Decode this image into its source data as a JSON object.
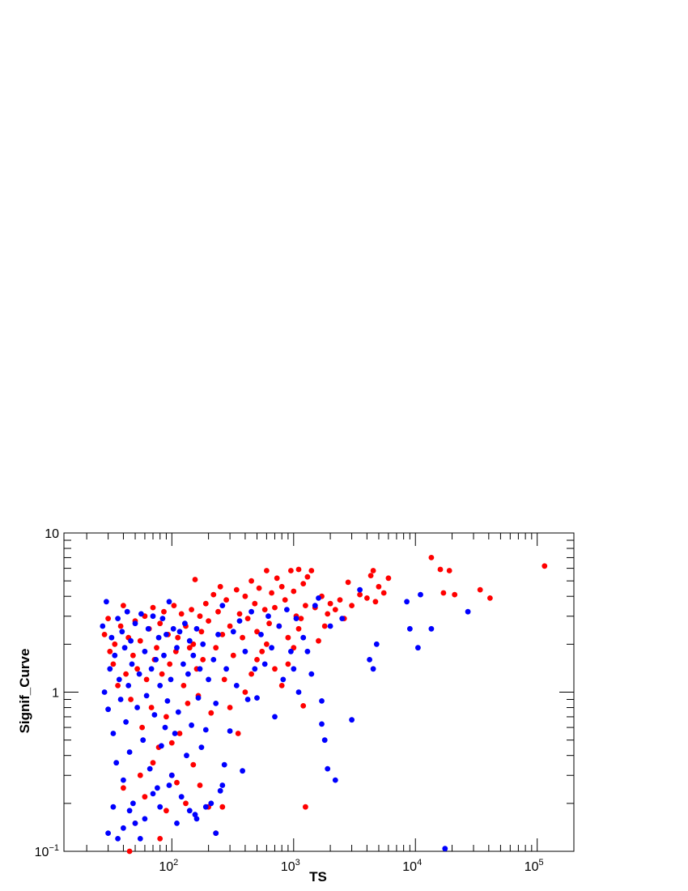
{
  "chart_data": {
    "type": "scatter",
    "title": "",
    "xlabel": "TS",
    "ylabel": "Signif_Curve",
    "xscale": "log",
    "yscale": "log",
    "xlim": [
      13,
      200000
    ],
    "ylim": [
      0.1,
      10
    ],
    "grid": false,
    "x_tick_labels": [
      {
        "value": 100,
        "base": "10",
        "exp": "2"
      },
      {
        "value": 1000,
        "base": "10",
        "exp": "3"
      },
      {
        "value": 10000,
        "base": "10",
        "exp": "4"
      },
      {
        "value": 100000,
        "base": "10",
        "exp": "5"
      }
    ],
    "y_tick_labels": [
      {
        "value": 0.1,
        "base": "10",
        "exp": "−1"
      },
      {
        "value": 1,
        "base": "1",
        "exp": ""
      },
      {
        "value": 10,
        "base": "10",
        "exp": ""
      }
    ],
    "series": [
      {
        "color": "#ff0000",
        "points": [
          [
            28,
            2.3
          ],
          [
            30,
            2.9
          ],
          [
            31,
            1.8
          ],
          [
            33,
            1.5
          ],
          [
            34,
            2.0
          ],
          [
            36,
            1.1
          ],
          [
            38,
            2.6
          ],
          [
            40,
            3.5
          ],
          [
            42,
            1.3
          ],
          [
            44,
            2.2
          ],
          [
            46,
            0.9
          ],
          [
            48,
            1.7
          ],
          [
            50,
            2.8
          ],
          [
            52,
            1.4
          ],
          [
            55,
            2.1
          ],
          [
            57,
            0.6
          ],
          [
            60,
            3.0
          ],
          [
            62,
            1.2
          ],
          [
            65,
            2.5
          ],
          [
            68,
            0.8
          ],
          [
            70,
            3.4
          ],
          [
            72,
            1.6
          ],
          [
            75,
            1.9
          ],
          [
            78,
            0.45
          ],
          [
            80,
            2.7
          ],
          [
            83,
            1.3
          ],
          [
            86,
            3.2
          ],
          [
            90,
            0.7
          ],
          [
            93,
            2.3
          ],
          [
            96,
            1.5
          ],
          [
            100,
            0.48
          ],
          [
            104,
            3.5
          ],
          [
            108,
            1.8
          ],
          [
            112,
            2.2
          ],
          [
            116,
            0.55
          ],
          [
            120,
            3.1
          ],
          [
            125,
            1.1
          ],
          [
            130,
            2.6
          ],
          [
            135,
            0.85
          ],
          [
            140,
            1.9
          ],
          [
            145,
            3.3
          ],
          [
            150,
            2.0
          ],
          [
            155,
            5.1
          ],
          [
            160,
            1.4
          ],
          [
            165,
            0.95
          ],
          [
            170,
            3.0
          ],
          [
            175,
            2.4
          ],
          [
            180,
            1.6
          ],
          [
            190,
            3.6
          ],
          [
            200,
            2.8
          ],
          [
            210,
            0.74
          ],
          [
            220,
            4.1
          ],
          [
            230,
            1.9
          ],
          [
            240,
            3.2
          ],
          [
            250,
            4.6
          ],
          [
            260,
            2.3
          ],
          [
            270,
            1.2
          ],
          [
            280,
            3.8
          ],
          [
            300,
            2.6
          ],
          [
            320,
            1.7
          ],
          [
            340,
            4.4
          ],
          [
            360,
            3.1
          ],
          [
            380,
            2.2
          ],
          [
            400,
            4.0
          ],
          [
            420,
            2.9
          ],
          [
            450,
            5.0
          ],
          [
            480,
            3.6
          ],
          [
            500,
            2.4
          ],
          [
            520,
            4.5
          ],
          [
            550,
            1.8
          ],
          [
            580,
            3.3
          ],
          [
            600,
            5.8
          ],
          [
            630,
            2.7
          ],
          [
            660,
            4.2
          ],
          [
            700,
            3.4
          ],
          [
            730,
            5.2
          ],
          [
            760,
            2.6
          ],
          [
            800,
            4.6
          ],
          [
            850,
            3.8
          ],
          [
            900,
            1.5
          ],
          [
            950,
            5.8
          ],
          [
            1000,
            4.3
          ],
          [
            1050,
            3.0
          ],
          [
            1100,
            5.9
          ],
          [
            1150,
            2.9
          ],
          [
            1200,
            4.8
          ],
          [
            1250,
            3.5
          ],
          [
            1300,
            5.3
          ],
          [
            1400,
            5.8
          ],
          [
            1500,
            3.4
          ],
          [
            1600,
            2.1
          ],
          [
            1700,
            4.0
          ],
          [
            1800,
            2.6
          ],
          [
            1900,
            3.1
          ],
          [
            2000,
            3.6
          ],
          [
            2200,
            3.3
          ],
          [
            2400,
            3.8
          ],
          [
            2600,
            2.9
          ],
          [
            2800,
            4.9
          ],
          [
            3000,
            3.5
          ],
          [
            3500,
            4.1
          ],
          [
            4000,
            3.9
          ],
          [
            4300,
            5.4
          ],
          [
            4500,
            5.8
          ],
          [
            4700,
            3.7
          ],
          [
            5000,
            4.6
          ],
          [
            5500,
            4.2
          ],
          [
            6000,
            5.2
          ],
          [
            1200,
            0.82
          ],
          [
            1250,
            0.19
          ],
          [
            13500,
            7.0
          ],
          [
            16000,
            5.9
          ],
          [
            17000,
            4.2
          ],
          [
            19000,
            5.8
          ],
          [
            21000,
            4.1
          ],
          [
            34000,
            4.4
          ],
          [
            41000,
            3.9
          ],
          [
            115000,
            6.2
          ],
          [
            40,
            0.25
          ],
          [
            45,
            0.1
          ],
          [
            50,
            0.15
          ],
          [
            55,
            0.3
          ],
          [
            60,
            0.22
          ],
          [
            70,
            0.36
          ],
          [
            80,
            0.12
          ],
          [
            90,
            0.18
          ],
          [
            100,
            0.3
          ],
          [
            110,
            0.27
          ],
          [
            130,
            0.2
          ],
          [
            150,
            0.35
          ],
          [
            170,
            0.26
          ],
          [
            200,
            0.19
          ],
          [
            230,
            0.13
          ],
          [
            260,
            0.19
          ],
          [
            300,
            0.8
          ],
          [
            350,
            0.55
          ],
          [
            400,
            1.0
          ],
          [
            450,
            1.3
          ],
          [
            500,
            1.6
          ],
          [
            600,
            2.0
          ],
          [
            700,
            1.4
          ],
          [
            800,
            1.1
          ],
          [
            900,
            2.2
          ],
          [
            1000,
            1.9
          ],
          [
            1100,
            2.5
          ]
        ]
      },
      {
        "color": "#0000ff",
        "points": [
          [
            27,
            2.6
          ],
          [
            28,
            1.0
          ],
          [
            29,
            3.7
          ],
          [
            30,
            0.78
          ],
          [
            31,
            1.4
          ],
          [
            32,
            2.2
          ],
          [
            33,
            0.55
          ],
          [
            34,
            1.7
          ],
          [
            35,
            0.36
          ],
          [
            36,
            2.9
          ],
          [
            37,
            1.2
          ],
          [
            38,
            0.9
          ],
          [
            39,
            2.4
          ],
          [
            40,
            0.28
          ],
          [
            41,
            1.9
          ],
          [
            42,
            0.65
          ],
          [
            43,
            3.2
          ],
          [
            44,
            1.1
          ],
          [
            45,
            0.42
          ],
          [
            46,
            2.1
          ],
          [
            47,
            1.5
          ],
          [
            48,
            0.2
          ],
          [
            50,
            2.7
          ],
          [
            52,
            0.8
          ],
          [
            54,
            1.3
          ],
          [
            56,
            3.1
          ],
          [
            58,
            0.5
          ],
          [
            60,
            1.8
          ],
          [
            62,
            0.95
          ],
          [
            64,
            2.5
          ],
          [
            66,
            0.33
          ],
          [
            68,
            1.4
          ],
          [
            70,
            3.0
          ],
          [
            72,
            0.72
          ],
          [
            74,
            1.6
          ],
          [
            76,
            0.25
          ],
          [
            78,
            2.2
          ],
          [
            80,
            1.1
          ],
          [
            82,
            0.46
          ],
          [
            84,
            2.9
          ],
          [
            86,
            1.7
          ],
          [
            88,
            0.6
          ],
          [
            90,
            2.3
          ],
          [
            92,
            0.88
          ],
          [
            95,
            3.7
          ],
          [
            98,
            1.2
          ],
          [
            100,
            0.3
          ],
          [
            103,
            2.5
          ],
          [
            106,
            0.55
          ],
          [
            110,
            1.9
          ],
          [
            113,
            0.75
          ],
          [
            116,
            2.4
          ],
          [
            120,
            0.22
          ],
          [
            124,
            1.5
          ],
          [
            128,
            2.7
          ],
          [
            132,
            0.4
          ],
          [
            136,
            1.3
          ],
          [
            140,
            2.1
          ],
          [
            145,
            0.62
          ],
          [
            150,
            1.7
          ],
          [
            155,
            0.17
          ],
          [
            160,
            2.5
          ],
          [
            165,
            0.92
          ],
          [
            170,
            1.4
          ],
          [
            175,
            0.45
          ],
          [
            180,
            2.0
          ],
          [
            190,
            0.58
          ],
          [
            200,
            1.2
          ],
          [
            210,
            0.2
          ],
          [
            220,
            1.6
          ],
          [
            230,
            0.85
          ],
          [
            240,
            2.3
          ],
          [
            250,
            0.24
          ],
          [
            260,
            3.5
          ],
          [
            270,
            0.35
          ],
          [
            280,
            1.4
          ],
          [
            300,
            0.57
          ],
          [
            320,
            2.4
          ],
          [
            340,
            1.1
          ],
          [
            360,
            2.8
          ],
          [
            380,
            0.32
          ],
          [
            400,
            1.8
          ],
          [
            420,
            0.9
          ],
          [
            450,
            3.2
          ],
          [
            480,
            1.4
          ],
          [
            500,
            0.92
          ],
          [
            540,
            2.3
          ],
          [
            580,
            1.5
          ],
          [
            620,
            3.0
          ],
          [
            660,
            1.9
          ],
          [
            700,
            0.7
          ],
          [
            760,
            2.6
          ],
          [
            820,
            1.2
          ],
          [
            880,
            3.3
          ],
          [
            950,
            1.8
          ],
          [
            1000,
            1.4
          ],
          [
            1050,
            2.9
          ],
          [
            1100,
            1.0
          ],
          [
            1200,
            2.2
          ],
          [
            1300,
            1.8
          ],
          [
            1400,
            1.3
          ],
          [
            1500,
            3.5
          ],
          [
            1600,
            3.9
          ],
          [
            1700,
            0.88
          ],
          [
            1700,
            0.63
          ],
          [
            1800,
            0.5
          ],
          [
            1900,
            0.33
          ],
          [
            2000,
            2.6
          ],
          [
            2200,
            0.28
          ],
          [
            2500,
            2.9
          ],
          [
            3000,
            0.67
          ],
          [
            3500,
            4.4
          ],
          [
            4200,
            1.6
          ],
          [
            4500,
            1.4
          ],
          [
            4800,
            2.0
          ],
          [
            8500,
            3.7
          ],
          [
            9000,
            2.5
          ],
          [
            10500,
            1.9
          ],
          [
            11000,
            4.1
          ],
          [
            13500,
            2.5
          ],
          [
            17500,
            0.104
          ],
          [
            27000,
            3.2
          ],
          [
            30,
            0.13
          ],
          [
            33,
            0.19
          ],
          [
            36,
            0.12
          ],
          [
            40,
            0.14
          ],
          [
            45,
            0.18
          ],
          [
            50,
            0.15
          ],
          [
            55,
            0.12
          ],
          [
            60,
            0.16
          ],
          [
            70,
            0.23
          ],
          [
            80,
            0.19
          ],
          [
            95,
            0.26
          ],
          [
            110,
            0.15
          ],
          [
            140,
            0.18
          ],
          [
            160,
            0.16
          ],
          [
            190,
            0.19
          ],
          [
            230,
            0.13
          ],
          [
            260,
            0.26
          ]
        ]
      }
    ]
  }
}
